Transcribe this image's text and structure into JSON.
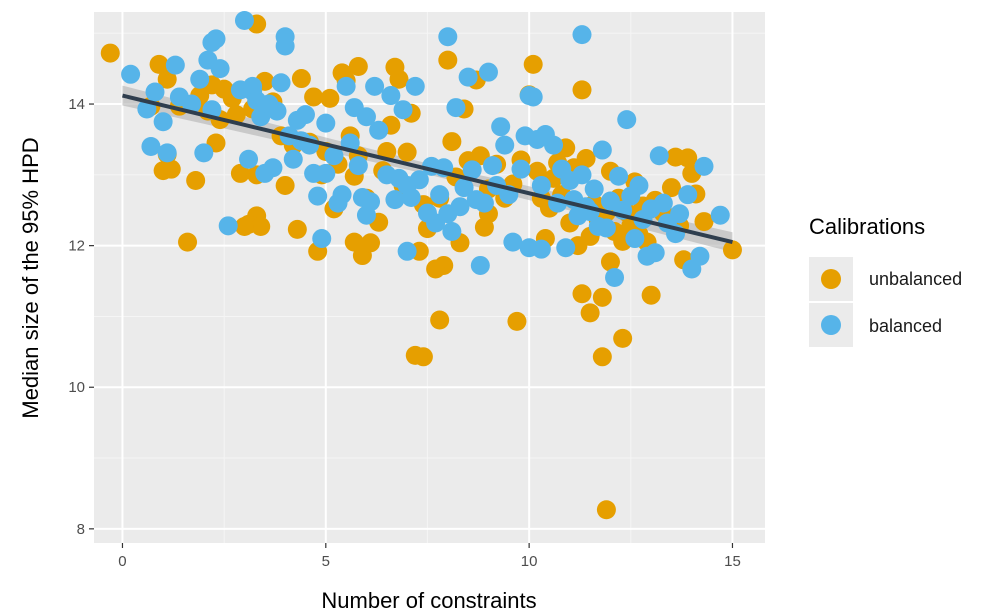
{
  "chart_data": {
    "type": "scatter",
    "xlabel": "Number of constraints",
    "ylabel": "Median size of the 95% HPD",
    "xlim": [
      -0.7,
      15.8
    ],
    "ylim": [
      7.8,
      15.3
    ],
    "x_ticks": [
      0,
      5,
      10,
      15
    ],
    "y_ticks": [
      8,
      10,
      12,
      14
    ],
    "x_tick_labels": [
      "0",
      "5",
      "10",
      "15"
    ],
    "y_tick_labels": [
      "8",
      "10",
      "12",
      "14"
    ],
    "grid": true,
    "background": "#ebebeb",
    "legend": {
      "title": "Calibrations",
      "position": "right",
      "entries": [
        "unbalanced",
        "balanced"
      ]
    },
    "trend": {
      "type": "linear fit",
      "x": [
        0,
        15
      ],
      "y": [
        14.12,
        12.05
      ],
      "ci_halfwidth": [
        0.14,
        0.13
      ],
      "color": "#2f3e4e",
      "band_color": "#b3b3b3"
    },
    "series": [
      {
        "name": "unbalanced",
        "color": "#E69F00",
        "points": [
          [
            -0.3,
            14.72
          ],
          [
            0.7,
            13.97
          ],
          [
            0.9,
            14.56
          ],
          [
            1.0,
            13.06
          ],
          [
            1.1,
            14.35
          ],
          [
            1.2,
            13.08
          ],
          [
            1.1,
            13.29
          ],
          [
            1.4,
            13.97
          ],
          [
            1.6,
            12.05
          ],
          [
            1.8,
            12.92
          ],
          [
            1.9,
            14.12
          ],
          [
            2.1,
            13.9
          ],
          [
            2.2,
            14.27
          ],
          [
            2.3,
            13.45
          ],
          [
            2.4,
            13.78
          ],
          [
            2.5,
            14.21
          ],
          [
            2.7,
            14.08
          ],
          [
            2.8,
            13.85
          ],
          [
            2.9,
            13.02
          ],
          [
            3.0,
            12.27
          ],
          [
            3.1,
            12.3
          ],
          [
            3.2,
            13.93
          ],
          [
            3.3,
            15.13
          ],
          [
            3.3,
            12.42
          ],
          [
            3.3,
            13.0
          ],
          [
            3.4,
            12.27
          ],
          [
            3.5,
            14.32
          ],
          [
            3.7,
            14.03
          ],
          [
            3.9,
            13.55
          ],
          [
            4.0,
            12.85
          ],
          [
            4.2,
            13.42
          ],
          [
            4.3,
            12.23
          ],
          [
            4.4,
            14.36
          ],
          [
            4.6,
            13.46
          ],
          [
            4.7,
            14.1
          ],
          [
            4.8,
            11.92
          ],
          [
            4.9,
            13.0
          ],
          [
            5.0,
            13.33
          ],
          [
            5.1,
            14.08
          ],
          [
            5.2,
            12.52
          ],
          [
            5.3,
            13.15
          ],
          [
            5.4,
            14.44
          ],
          [
            5.5,
            14.33
          ],
          [
            5.6,
            13.55
          ],
          [
            5.7,
            12.98
          ],
          [
            5.7,
            12.05
          ],
          [
            5.8,
            14.53
          ],
          [
            5.8,
            13.27
          ],
          [
            5.9,
            11.86
          ],
          [
            6.0,
            12.67
          ],
          [
            6.1,
            12.04
          ],
          [
            6.3,
            12.33
          ],
          [
            6.4,
            13.06
          ],
          [
            6.5,
            13.33
          ],
          [
            6.6,
            13.7
          ],
          [
            6.7,
            14.52
          ],
          [
            6.8,
            14.35
          ],
          [
            6.9,
            12.85
          ],
          [
            7.0,
            13.32
          ],
          [
            7.1,
            13.87
          ],
          [
            7.2,
            10.45
          ],
          [
            7.3,
            11.92
          ],
          [
            7.4,
            12.58
          ],
          [
            7.4,
            10.43
          ],
          [
            7.5,
            12.24
          ],
          [
            7.7,
            11.67
          ],
          [
            7.8,
            12.67
          ],
          [
            7.8,
            10.95
          ],
          [
            7.9,
            11.72
          ],
          [
            8.0,
            14.62
          ],
          [
            8.1,
            13.47
          ],
          [
            8.2,
            12.97
          ],
          [
            8.3,
            12.04
          ],
          [
            8.4,
            13.93
          ],
          [
            8.5,
            13.2
          ],
          [
            8.7,
            14.34
          ],
          [
            8.8,
            13.27
          ],
          [
            8.9,
            12.26
          ],
          [
            9.0,
            12.8
          ],
          [
            9.0,
            12.45
          ],
          [
            9.2,
            13.15
          ],
          [
            9.4,
            12.67
          ],
          [
            9.6,
            12.87
          ],
          [
            9.7,
            10.93
          ],
          [
            9.8,
            13.21
          ],
          [
            10.0,
            14.13
          ],
          [
            10.1,
            14.56
          ],
          [
            10.2,
            13.05
          ],
          [
            10.3,
            12.67
          ],
          [
            10.4,
            12.1
          ],
          [
            10.5,
            12.53
          ],
          [
            10.6,
            12.95
          ],
          [
            10.7,
            13.17
          ],
          [
            10.8,
            12.72
          ],
          [
            10.9,
            13.38
          ],
          [
            11.0,
            12.32
          ],
          [
            11.1,
            13.1
          ],
          [
            11.2,
            12.0
          ],
          [
            11.3,
            14.2
          ],
          [
            11.3,
            11.32
          ],
          [
            11.4,
            13.23
          ],
          [
            11.5,
            12.13
          ],
          [
            11.5,
            11.05
          ],
          [
            11.6,
            12.59
          ],
          [
            11.7,
            12.36
          ],
          [
            11.8,
            11.27
          ],
          [
            11.8,
            10.43
          ],
          [
            11.9,
            12.47
          ],
          [
            11.9,
            8.27
          ],
          [
            12.0,
            13.05
          ],
          [
            12.0,
            11.77
          ],
          [
            12.1,
            12.2
          ],
          [
            12.2,
            12.67
          ],
          [
            12.3,
            12.06
          ],
          [
            12.3,
            10.69
          ],
          [
            12.4,
            12.47
          ],
          [
            12.5,
            12.28
          ],
          [
            12.6,
            12.9
          ],
          [
            12.7,
            12.16
          ],
          [
            12.8,
            12.56
          ],
          [
            12.9,
            12.05
          ],
          [
            13.0,
            11.3
          ],
          [
            13.1,
            12.64
          ],
          [
            13.3,
            12.46
          ],
          [
            13.5,
            12.82
          ],
          [
            13.6,
            13.25
          ],
          [
            13.7,
            12.28
          ],
          [
            13.8,
            11.8
          ],
          [
            13.9,
            13.24
          ],
          [
            14.0,
            13.02
          ],
          [
            14.1,
            12.73
          ],
          [
            14.3,
            12.34
          ],
          [
            15.0,
            11.94
          ]
        ]
      },
      {
        "name": "balanced",
        "color": "#56B4E9",
        "points": [
          [
            0.2,
            14.42
          ],
          [
            0.6,
            13.93
          ],
          [
            0.7,
            13.4
          ],
          [
            0.8,
            14.17
          ],
          [
            1.0,
            13.75
          ],
          [
            1.1,
            13.31
          ],
          [
            1.3,
            14.55
          ],
          [
            1.4,
            14.1
          ],
          [
            1.7,
            14.0
          ],
          [
            1.9,
            14.35
          ],
          [
            2.0,
            13.31
          ],
          [
            2.1,
            14.62
          ],
          [
            2.2,
            14.87
          ],
          [
            2.3,
            14.92
          ],
          [
            2.4,
            14.5
          ],
          [
            2.6,
            12.28
          ],
          [
            2.9,
            14.2
          ],
          [
            3.0,
            15.18
          ],
          [
            3.1,
            13.22
          ],
          [
            3.2,
            14.25
          ],
          [
            3.3,
            14.05
          ],
          [
            3.4,
            13.82
          ],
          [
            3.5,
            13.02
          ],
          [
            3.6,
            14.0
          ],
          [
            3.7,
            13.1
          ],
          [
            3.8,
            13.9
          ],
          [
            3.9,
            14.3
          ],
          [
            4.0,
            14.82
          ],
          [
            4.0,
            14.95
          ],
          [
            4.1,
            13.55
          ],
          [
            4.2,
            13.22
          ],
          [
            4.3,
            13.77
          ],
          [
            4.4,
            13.48
          ],
          [
            4.5,
            13.85
          ],
          [
            4.6,
            13.42
          ],
          [
            4.7,
            13.02
          ],
          [
            4.8,
            12.7
          ],
          [
            4.9,
            12.1
          ],
          [
            5.0,
            13.02
          ],
          [
            5.0,
            13.73
          ],
          [
            5.2,
            13.27
          ],
          [
            5.3,
            12.6
          ],
          [
            5.4,
            12.72
          ],
          [
            5.5,
            14.25
          ],
          [
            5.6,
            13.45
          ],
          [
            5.7,
            13.95
          ],
          [
            5.8,
            13.13
          ],
          [
            5.9,
            12.68
          ],
          [
            6.0,
            13.82
          ],
          [
            6.0,
            12.43
          ],
          [
            6.1,
            12.62
          ],
          [
            6.2,
            14.25
          ],
          [
            6.3,
            13.63
          ],
          [
            6.5,
            13.0
          ],
          [
            6.6,
            14.12
          ],
          [
            6.7,
            12.65
          ],
          [
            6.8,
            12.95
          ],
          [
            6.9,
            13.92
          ],
          [
            7.0,
            12.85
          ],
          [
            7.0,
            11.92
          ],
          [
            7.1,
            12.68
          ],
          [
            7.2,
            14.25
          ],
          [
            7.3,
            12.93
          ],
          [
            7.5,
            12.46
          ],
          [
            7.6,
            13.12
          ],
          [
            7.7,
            12.32
          ],
          [
            7.8,
            12.72
          ],
          [
            7.9,
            13.1
          ],
          [
            8.0,
            14.95
          ],
          [
            8.0,
            12.45
          ],
          [
            8.1,
            12.2
          ],
          [
            8.2,
            13.95
          ],
          [
            8.3,
            12.55
          ],
          [
            8.4,
            12.82
          ],
          [
            8.5,
            14.38
          ],
          [
            8.6,
            13.07
          ],
          [
            8.7,
            12.65
          ],
          [
            8.8,
            11.72
          ],
          [
            8.9,
            12.6
          ],
          [
            9.0,
            14.45
          ],
          [
            9.1,
            13.13
          ],
          [
            9.2,
            12.85
          ],
          [
            9.3,
            13.68
          ],
          [
            9.4,
            13.42
          ],
          [
            9.5,
            12.72
          ],
          [
            9.6,
            12.05
          ],
          [
            9.8,
            13.08
          ],
          [
            9.9,
            13.55
          ],
          [
            10.0,
            14.12
          ],
          [
            10.0,
            11.97
          ],
          [
            10.1,
            14.1
          ],
          [
            10.2,
            13.5
          ],
          [
            10.3,
            12.85
          ],
          [
            10.3,
            11.95
          ],
          [
            10.4,
            13.57
          ],
          [
            10.6,
            13.42
          ],
          [
            10.7,
            12.6
          ],
          [
            10.8,
            13.08
          ],
          [
            10.9,
            11.97
          ],
          [
            11.0,
            12.92
          ],
          [
            11.1,
            12.65
          ],
          [
            11.2,
            12.42
          ],
          [
            11.3,
            13.0
          ],
          [
            11.4,
            12.55
          ],
          [
            11.5,
            12.48
          ],
          [
            11.6,
            12.8
          ],
          [
            11.7,
            12.27
          ],
          [
            11.8,
            13.35
          ],
          [
            11.9,
            12.25
          ],
          [
            12.0,
            12.63
          ],
          [
            12.1,
            11.55
          ],
          [
            12.2,
            12.98
          ],
          [
            12.3,
            12.5
          ],
          [
            12.4,
            13.78
          ],
          [
            12.5,
            12.7
          ],
          [
            12.6,
            12.1
          ],
          [
            12.7,
            12.85
          ],
          [
            12.8,
            12.37
          ],
          [
            12.9,
            11.85
          ],
          [
            13.0,
            12.52
          ],
          [
            13.1,
            11.9
          ],
          [
            13.2,
            13.27
          ],
          [
            13.3,
            12.6
          ],
          [
            13.4,
            12.32
          ],
          [
            13.6,
            12.17
          ],
          [
            13.7,
            12.45
          ],
          [
            13.9,
            12.72
          ],
          [
            14.0,
            11.67
          ],
          [
            14.2,
            11.85
          ],
          [
            14.3,
            13.12
          ],
          [
            14.7,
            12.43
          ],
          [
            11.3,
            14.98
          ],
          [
            3.2,
            14.18
          ],
          [
            2.2,
            13.92
          ]
        ]
      }
    ]
  }
}
